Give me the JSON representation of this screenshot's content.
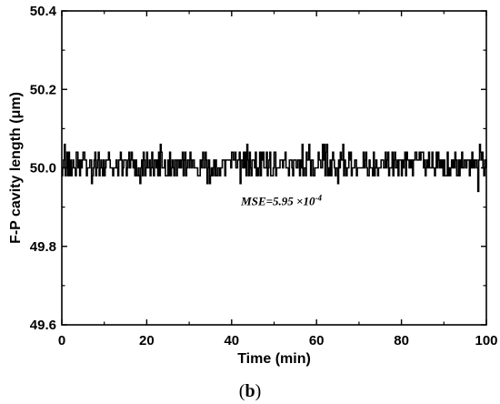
{
  "chart_data": {
    "type": "line",
    "title": "",
    "xlabel": "Time (min)",
    "ylabel": "F-P cavity length (μm)",
    "xlim": [
      0,
      100
    ],
    "ylim": [
      49.6,
      50.4
    ],
    "xticks": [
      0,
      20,
      40,
      60,
      80,
      100
    ],
    "xtick_labels": [
      "0",
      "20",
      "40",
      "60",
      "80",
      "100"
    ],
    "yticks": [
      49.6,
      49.8,
      50.0,
      50.2,
      50.4
    ],
    "ytick_labels": [
      "49.6",
      "49.8",
      "50.0",
      "50.2",
      "50.4"
    ],
    "grid": false,
    "legend": "none",
    "series_color": "#000000",
    "sample_interval_min": 0.2,
    "levels": [
      49.98,
      50.0,
      50.02,
      50.04
    ],
    "noise_range": [
      49.94,
      50.06
    ],
    "series_summary": {
      "approx_mean": 50.01,
      "min": 49.94,
      "max": 50.06
    },
    "annotations": [
      {
        "text_main": "MSE=5.95 ×10",
        "text_sup": "-4",
        "x": 54,
        "y": 49.905
      }
    ]
  },
  "caption": {
    "open": "(",
    "letter": "b",
    "close": ")"
  }
}
